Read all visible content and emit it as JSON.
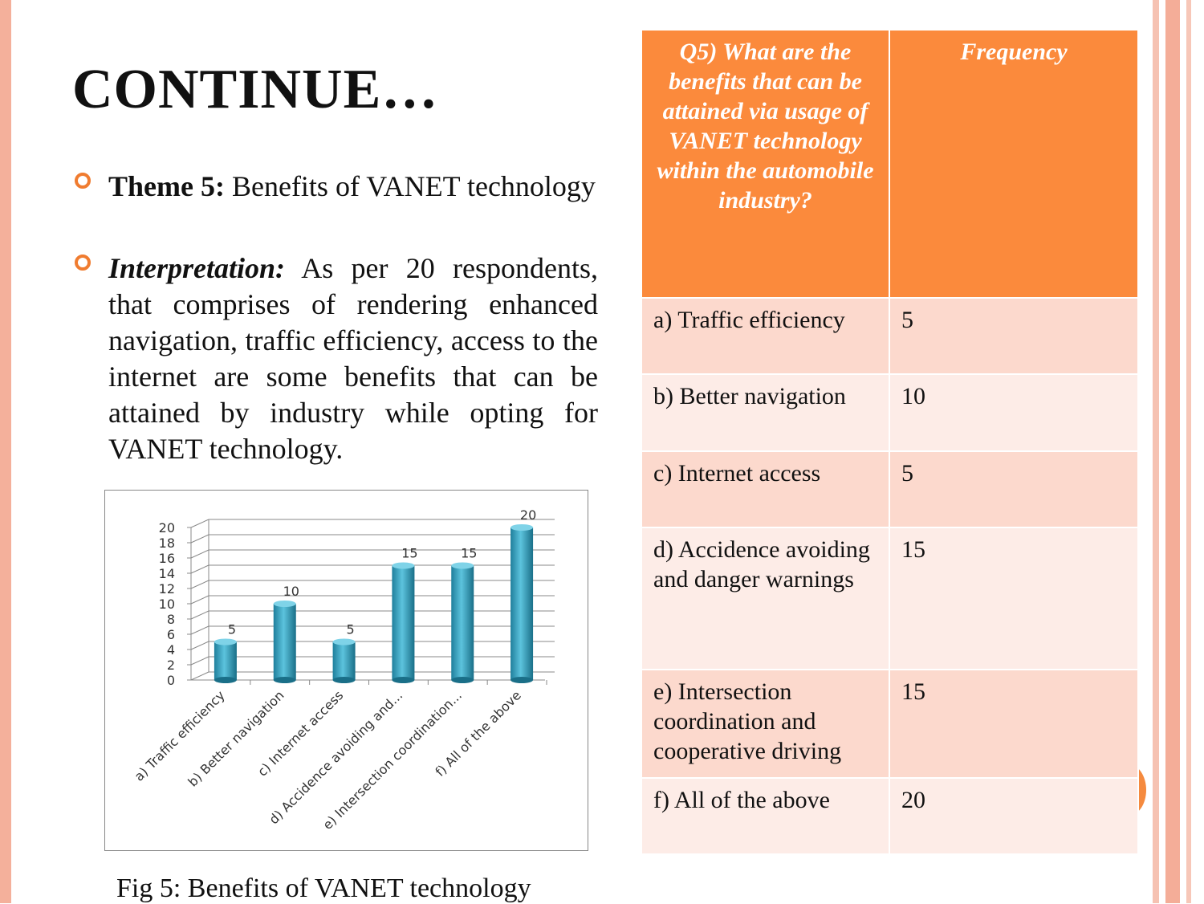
{
  "title": "CONTINUE…",
  "bullets": [
    {
      "label": "Theme 5:",
      "text": "Benefits of VANET technology"
    },
    {
      "label": "Interpretation:",
      "text": "As per 20 respondents, that comprises of rendering enhanced navigation, traffic efficiency, access to the internet are some benefits that can be attained by industry while opting for VANET technology."
    }
  ],
  "chart_data": {
    "type": "bar",
    "categories": [
      "a) Traffic efficiency",
      "b) Better navigation",
      "c) Internet access",
      "d) Accidence avoiding and...",
      "e) Intersection coordination...",
      "f) All of the above"
    ],
    "values": [
      5,
      10,
      5,
      15,
      15,
      20
    ],
    "color": "#3aa6c4",
    "ylim": [
      0,
      20
    ],
    "yticks": [
      0,
      2,
      4,
      6,
      8,
      10,
      12,
      14,
      16,
      18,
      20
    ],
    "grid": true
  },
  "caption": "Fig 5: Benefits of VANET technology",
  "table": {
    "header": [
      "Q5) What are the benefits that can be attained via usage of VANET technology within the automobile industry?",
      "Frequency"
    ],
    "rows": [
      [
        "a) Traffic efficiency",
        "5"
      ],
      [
        "b) Better navigation",
        "10"
      ],
      [
        "c) Internet access",
        "5"
      ],
      [
        "d) Accidence avoiding and danger warnings",
        "15"
      ],
      [
        "e) Intersection coordination and cooperative driving",
        "15"
      ],
      [
        "f) All of the above",
        "20"
      ]
    ]
  }
}
